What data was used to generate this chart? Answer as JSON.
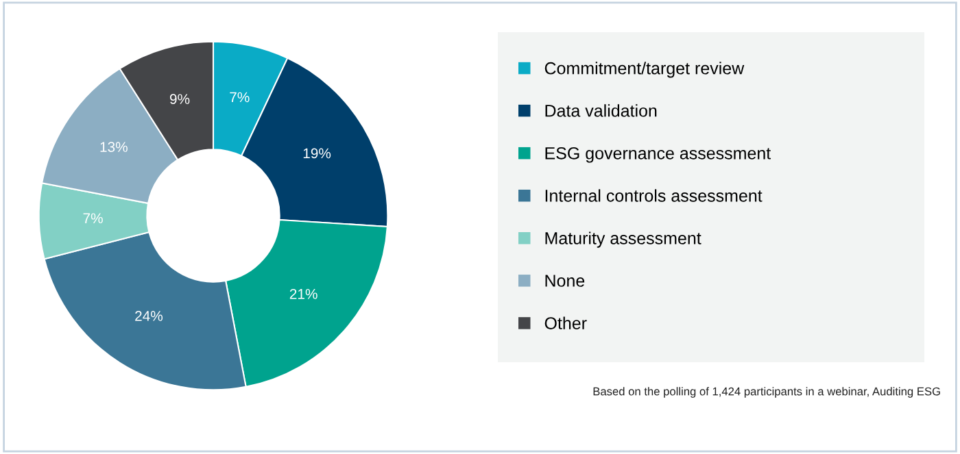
{
  "chart_data": {
    "type": "donut",
    "categories": [
      "Commitment/target review",
      "Data validation",
      "ESG governance assessment",
      "Internal controls assessment",
      "Maturity assessment",
      "None",
      "Other"
    ],
    "values": [
      7,
      19,
      21,
      24,
      7,
      13,
      9
    ],
    "colors": [
      "#0aabc6",
      "#003f6b",
      "#00a38e",
      "#3b7696",
      "#82d0c5",
      "#8caec3",
      "#444548"
    ],
    "value_labels": [
      "7%",
      "19%",
      "21%",
      "24%",
      "7%",
      "13%",
      "9%"
    ],
    "legend": "right",
    "annotations": [
      "Based on the polling of 1,424 participants in a webinar, Auditing ESG"
    ]
  }
}
